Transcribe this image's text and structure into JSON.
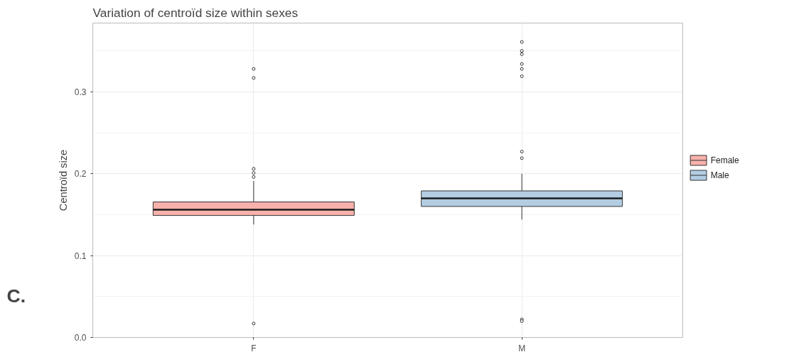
{
  "chart_data": {
    "type": "box",
    "title": "Variation of centroïd size within sexes",
    "ylabel": "Centroïd size",
    "categories": [
      "F",
      "M"
    ],
    "series": [
      {
        "name": "Female",
        "color": "#f8b1ab",
        "boxes": [
          {
            "low": 0.138,
            "q1": 0.149,
            "median": 0.156,
            "q3": 0.1655,
            "high": 0.191,
            "outliers": [
              0.328,
              0.317,
              0.206,
              0.201,
              0.196,
              0.017
            ]
          },
          null
        ]
      },
      {
        "name": "Male",
        "color": "#b3cde3",
        "boxes": [
          null,
          {
            "low": 0.144,
            "q1": 0.16,
            "median": 0.17,
            "q3": 0.179,
            "high": 0.2,
            "outliers": [
              0.361,
              0.35,
              0.346,
              0.334,
              0.328,
              0.319,
              0.227,
              0.219,
              0.022,
              0.02
            ]
          }
        ]
      }
    ],
    "ylim": [
      0,
      0.384
    ],
    "yticks": [
      {
        "value": 0,
        "label": "0.0"
      },
      0.1,
      0.2,
      0.3
    ],
    "grid": true,
    "legend": "right",
    "marker": "circle",
    "annotations": [
      "C."
    ]
  }
}
